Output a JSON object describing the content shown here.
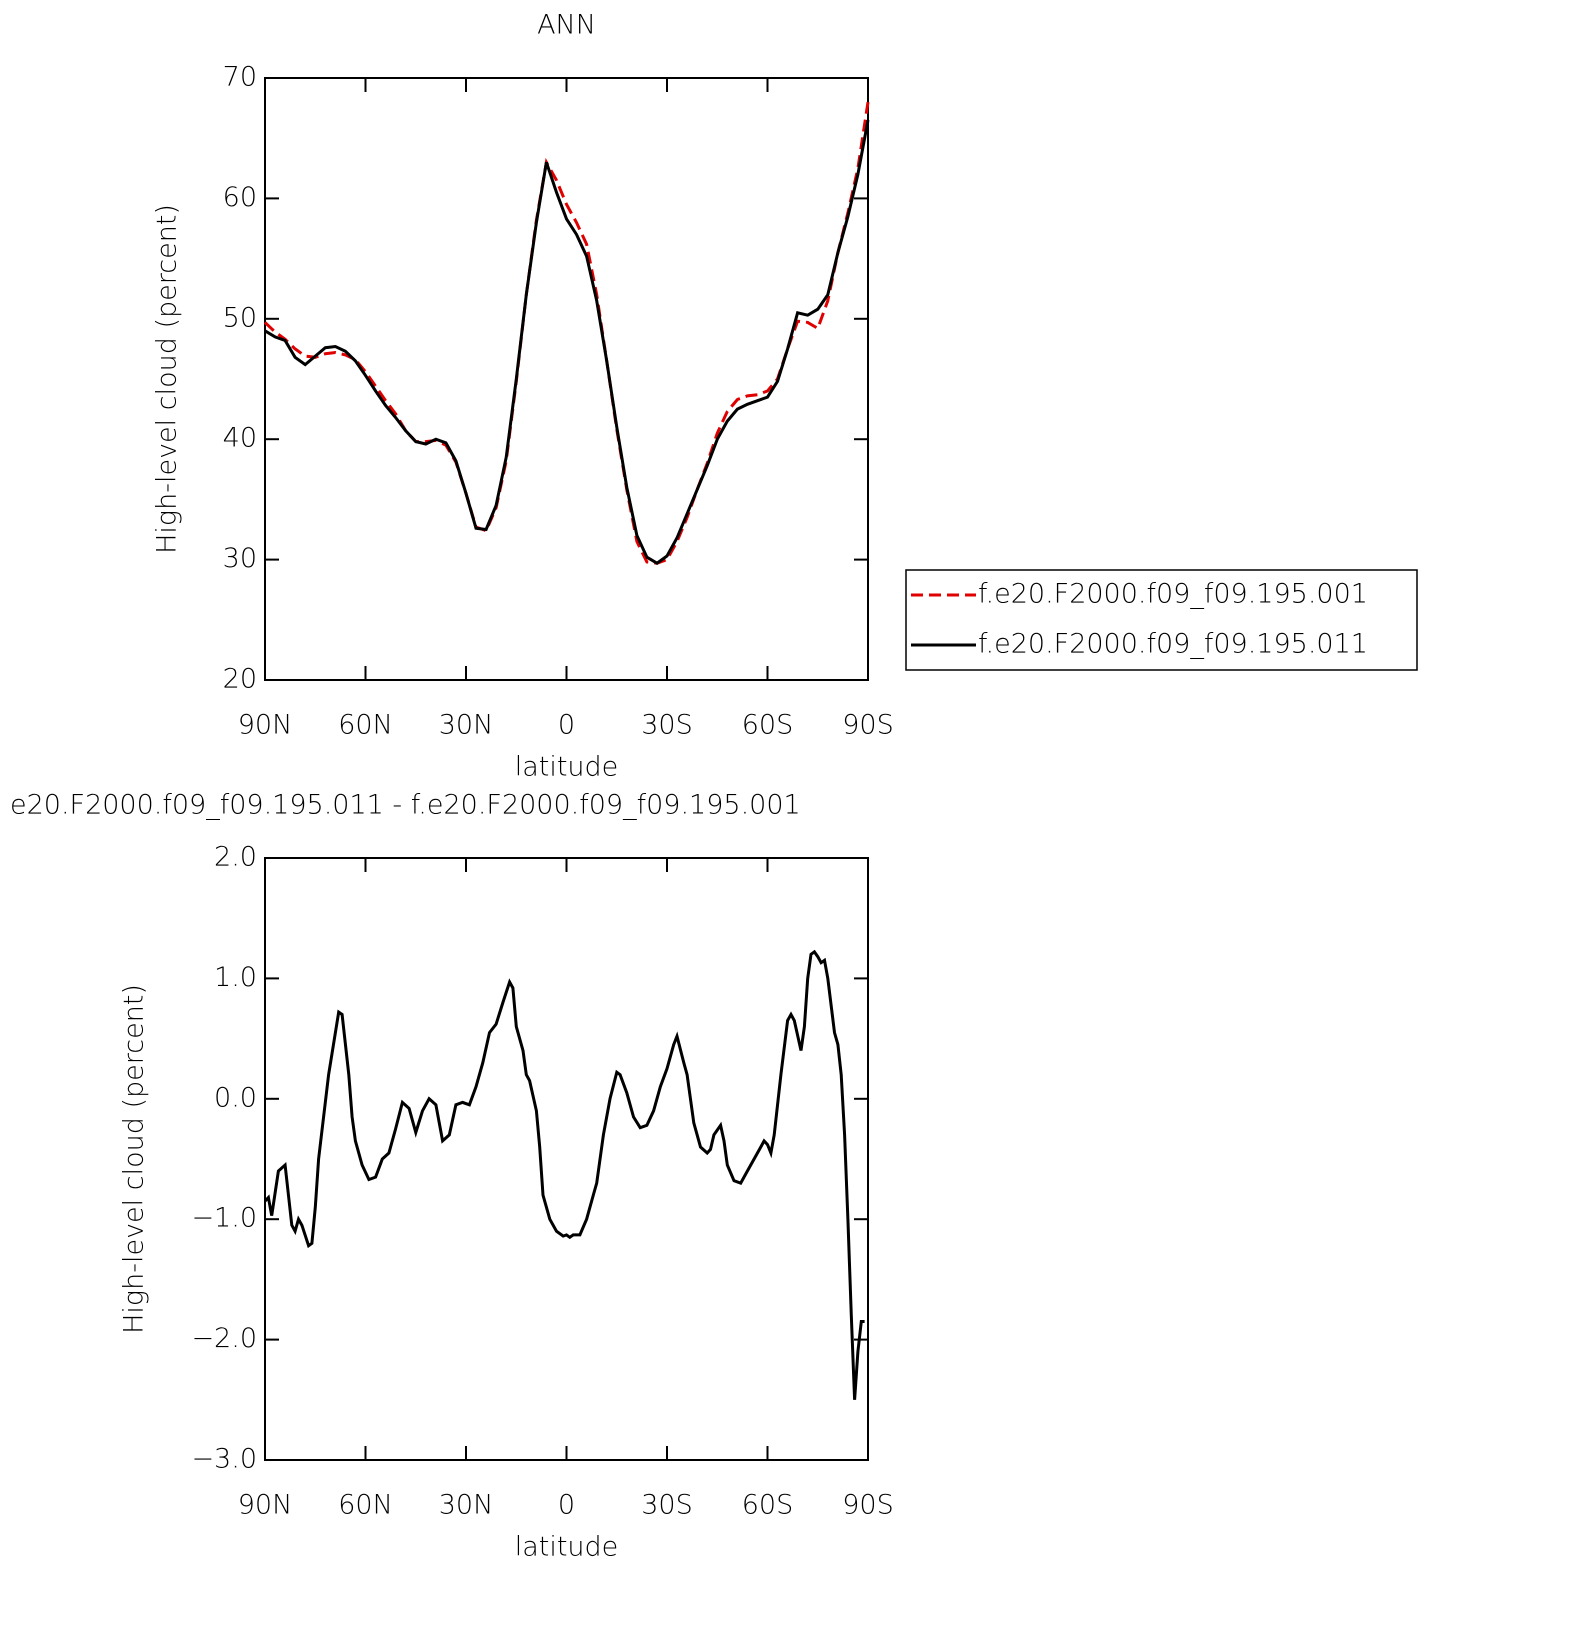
{
  "chart_data": [
    {
      "type": "line",
      "title": "ANN",
      "xlabel": "latitude",
      "ylabel": "High-level cloud (percent)",
      "x": [
        90,
        87,
        84,
        81,
        78,
        75,
        72,
        69,
        66,
        63,
        60,
        57,
        54,
        51,
        48,
        45,
        42,
        39,
        36,
        33,
        30,
        27,
        24,
        21,
        18,
        15,
        12,
        9,
        6,
        3,
        0,
        -3,
        -6,
        -9,
        -12,
        -15,
        -18,
        -21,
        -24,
        -27,
        -30,
        -33,
        -36,
        -39,
        -42,
        -45,
        -48,
        -51,
        -54,
        -57,
        -60,
        -63,
        -66,
        -69,
        -72,
        -75,
        -78,
        -81,
        -84,
        -87,
        -90
      ],
      "series": [
        {
          "name": "f.e20.F2000.f09_f09.195.001",
          "color": "#e00000",
          "style": "dashed",
          "values": [
            49.7,
            48.9,
            48.3,
            47.5,
            46.9,
            46.8,
            47.1,
            47.2,
            47.0,
            46.6,
            45.6,
            44.4,
            43.2,
            42.1,
            40.7,
            39.8,
            39.8,
            39.9,
            39.5,
            38.1,
            35.5,
            32.7,
            32.4,
            34.3,
            38.2,
            44.8,
            52,
            58.2,
            63.0,
            61.5,
            59.5,
            58,
            56.2,
            52,
            46.5,
            40.8,
            35.8,
            31.5,
            29.8,
            29.7,
            30.0,
            31.5,
            33.5,
            35.8,
            38.0,
            40.5,
            42.3,
            43.3,
            43.6,
            43.7,
            44.0,
            45.0,
            47.5,
            49.8,
            49.7,
            49.2,
            51.5,
            55.5,
            58.8,
            62.5,
            68
          ]
        },
        {
          "name": "f.e20.F2000.f09_f09.195.011",
          "color": "#000000",
          "style": "solid",
          "values": [
            49.0,
            48.5,
            48.2,
            46.8,
            46.2,
            46.9,
            47.6,
            47.7,
            47.3,
            46.5,
            45.3,
            44.0,
            42.8,
            41.8,
            40.7,
            39.8,
            39.6,
            40.0,
            39.7,
            38.2,
            35.5,
            32.6,
            32.5,
            34.5,
            38.5,
            45,
            52,
            58,
            63.0,
            60.5,
            58.3,
            57,
            55.2,
            51.5,
            46.5,
            41,
            36,
            32,
            30.2,
            29.7,
            30.3,
            31.8,
            33.8,
            35.8,
            37.8,
            40,
            41.5,
            42.5,
            42.9,
            43.2,
            43.5,
            44.8,
            47.5,
            50.5,
            50.3,
            50.8,
            52,
            55.5,
            58.5,
            62,
            66.5
          ]
        }
      ],
      "xlim": [
        90,
        -90
      ],
      "xticks": [
        {
          "value": 90,
          "label": "90N"
        },
        {
          "value": 60,
          "label": "60N"
        },
        {
          "value": 30,
          "label": "30N"
        },
        0,
        {
          "value": -30,
          "label": "30S"
        },
        {
          "value": -60,
          "label": "60S"
        },
        {
          "value": -90,
          "label": "90S"
        }
      ],
      "ylim": [
        20,
        70
      ],
      "yticks": [
        20,
        30,
        40,
        50,
        60,
        70
      ],
      "legend": "right"
    },
    {
      "type": "line",
      "title": "e20.F2000.f09_f09.195.011 - f.e20.F2000.f09_f09.195.001",
      "xlabel": "latitude",
      "ylabel": "High-level cloud (percent)",
      "color": "#000000",
      "x": [
        90,
        89,
        88,
        86,
        84,
        82,
        81,
        80,
        79,
        77,
        76,
        75,
        74,
        71,
        68,
        67,
        65,
        64,
        63,
        61,
        59,
        57,
        55,
        53,
        51,
        49,
        47,
        45,
        43,
        41,
        39,
        37,
        35,
        33,
        31,
        29,
        27,
        25,
        23,
        21,
        19,
        17,
        16,
        15,
        13,
        12,
        11,
        9,
        8,
        7,
        5,
        3,
        1,
        0,
        -1,
        -2,
        -4,
        -6,
        -8,
        -9,
        -11,
        -13,
        -15,
        -16,
        -18,
        -20,
        -22,
        -24,
        -26,
        -28,
        -30,
        -32,
        -33,
        -35,
        -36,
        -38,
        -40,
        -42,
        -43,
        -44,
        -46,
        -47,
        -48,
        -50,
        -52,
        -54,
        -56,
        -58,
        -59,
        -60,
        -61,
        -62,
        -64,
        -66,
        -67,
        -68,
        -70,
        -71,
        -72,
        -73,
        -74,
        -75,
        -76,
        -77,
        -78,
        -80,
        -81,
        -82,
        -83,
        -84,
        -85,
        -86,
        -87,
        -88,
        -89
      ],
      "values": [
        -0.85,
        -0.82,
        -0.97,
        -0.6,
        -0.55,
        -1.05,
        -1.1,
        -1.0,
        -1.05,
        -1.22,
        -1.2,
        -0.9,
        -0.5,
        0.2,
        0.72,
        0.7,
        0.2,
        -0.15,
        -0.35,
        -0.55,
        -0.67,
        -0.65,
        -0.5,
        -0.45,
        -0.25,
        -0.03,
        -0.08,
        -0.28,
        -0.1,
        0.0,
        -0.05,
        -0.35,
        -0.3,
        -0.05,
        -0.03,
        -0.05,
        0.1,
        0.3,
        0.55,
        0.62,
        0.8,
        0.97,
        0.92,
        0.6,
        0.4,
        0.2,
        0.15,
        -0.1,
        -0.4,
        -0.8,
        -1.0,
        -1.1,
        -1.14,
        -1.13,
        -1.15,
        -1.13,
        -1.13,
        -1.0,
        -0.8,
        -0.7,
        -0.3,
        0.0,
        0.22,
        0.2,
        0.05,
        -0.15,
        -0.24,
        -0.22,
        -0.1,
        0.1,
        0.25,
        0.45,
        0.52,
        0.3,
        0.2,
        -0.2,
        -0.4,
        -0.45,
        -0.42,
        -0.3,
        -0.22,
        -0.35,
        -0.55,
        -0.68,
        -0.7,
        -0.6,
        -0.5,
        -0.4,
        -0.35,
        -0.38,
        -0.45,
        -0.3,
        0.2,
        0.65,
        0.7,
        0.65,
        0.4,
        0.6,
        1.0,
        1.2,
        1.22,
        1.18,
        1.13,
        1.15,
        1.0,
        0.55,
        0.45,
        0.2,
        -0.3,
        -1.0,
        -1.8,
        -2.5,
        -2.1,
        -1.85,
        -1.85
      ],
      "xlim": [
        90,
        -90
      ],
      "xticks": [
        {
          "value": 90,
          "label": "90N"
        },
        {
          "value": 60,
          "label": "60N"
        },
        {
          "value": 30,
          "label": "30N"
        },
        0,
        {
          "value": -30,
          "label": "30S"
        },
        {
          "value": -60,
          "label": "60S"
        },
        {
          "value": -90,
          "label": "90S"
        }
      ],
      "ylim": [
        -3,
        2
      ],
      "yticks": [
        {
          "value": -3,
          "label": "−3.0"
        },
        {
          "value": -2,
          "label": "−2.0"
        },
        {
          "value": -1,
          "label": "−1.0"
        },
        {
          "value": 0,
          "label": "0.0"
        },
        {
          "value": 1,
          "label": "1.0"
        },
        {
          "value": 2,
          "label": "2.0"
        }
      ]
    }
  ]
}
